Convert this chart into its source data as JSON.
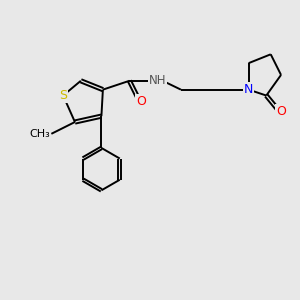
{
  "bg_color": "#e8e8e8",
  "atom_colors": {
    "S": "#ccbb00",
    "N": "#0000ff",
    "O": "#ff0000",
    "C": "#000000",
    "H": "#555555"
  },
  "font_size": 8.5,
  "bond_lw": 1.4
}
